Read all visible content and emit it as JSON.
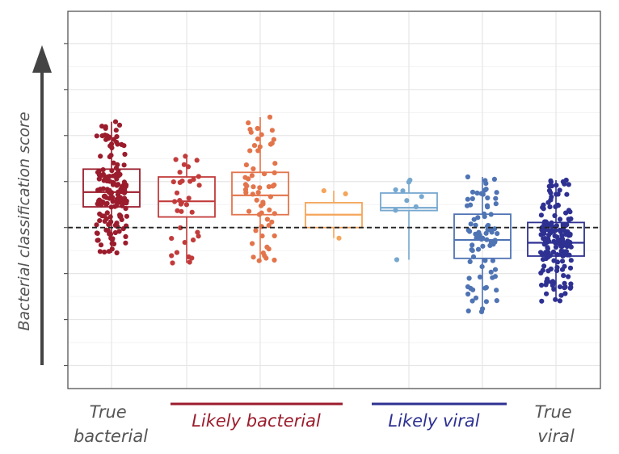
{
  "chart_data": {
    "type": "box",
    "ylabel": "Bacterial classification score",
    "ylim": [
      -3.5,
      4.7
    ],
    "yticks": [
      -3,
      -2,
      -1,
      0,
      1,
      2,
      3,
      4
    ],
    "threshold": 0,
    "grid": true,
    "categories": [
      "True bacterial",
      "Likely bacterial 1",
      "Likely bacterial 2",
      "Likely bacterial 3",
      "Likely viral 1",
      "Likely viral 2",
      "True viral"
    ],
    "group_labels": [
      {
        "label": "True\nbacterial",
        "color": "#555555"
      },
      {
        "label": "Likely bacterial",
        "color": "#9b1c2c"
      },
      {
        "label": "Likely viral",
        "color": "#2e3192"
      },
      {
        "label": "True\nviral",
        "color": "#555555"
      }
    ],
    "boxes": [
      {
        "color": "#9b1c2c",
        "q1": 0.45,
        "median": 0.77,
        "q3": 1.27,
        "whisker_low": -0.55,
        "whisker_high": 2.3
      },
      {
        "color": "#c23b3b",
        "q1": 0.23,
        "median": 0.57,
        "q3": 1.1,
        "whisker_low": -0.77,
        "whisker_high": 1.55
      },
      {
        "color": "#e3744b",
        "q1": 0.28,
        "median": 0.7,
        "q3": 1.2,
        "whisker_low": -0.72,
        "whisker_high": 2.4
      },
      {
        "color": "#f5a55a",
        "q1": 0.0,
        "median": 0.28,
        "q3": 0.54,
        "whisker_low": -0.23,
        "whisker_high": 0.8
      },
      {
        "color": "#76a8cf",
        "q1": 0.37,
        "median": 0.43,
        "q3": 0.75,
        "whisker_low": -0.7,
        "whisker_high": 1.03
      },
      {
        "color": "#4f74b4",
        "q1": -0.67,
        "median": -0.27,
        "q3": 0.29,
        "whisker_low": -1.83,
        "whisker_high": 1.1
      },
      {
        "color": "#2e3192",
        "q1": -0.62,
        "median": -0.33,
        "q3": 0.11,
        "whisker_low": -1.6,
        "whisker_high": 1.03
      }
    ],
    "point_counts": [
      160,
      35,
      60,
      3,
      9,
      80,
      170
    ]
  }
}
